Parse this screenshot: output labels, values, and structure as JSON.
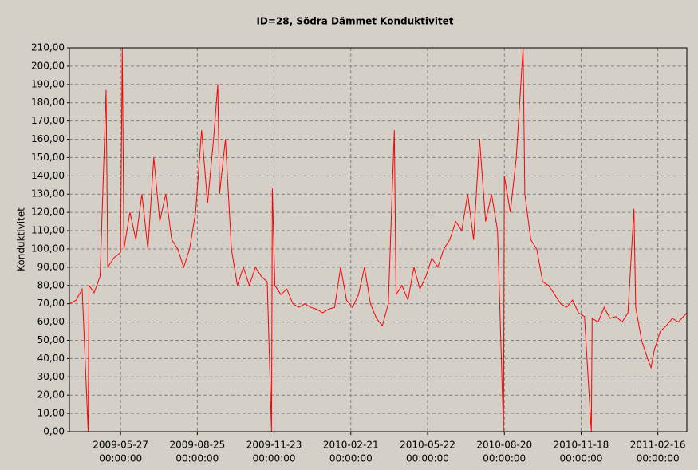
{
  "chart_data": {
    "type": "line",
    "title": "ID=28, Södra Dämmet Konduktivitet",
    "y_label": "Konduktivitet",
    "color": "#ff0000",
    "grid": true,
    "x": [
      "2009-03-28",
      "2009-04-05",
      "2009-04-12",
      "2009-04-19",
      "2009-04-20",
      "2009-04-26",
      "2009-05-03",
      "2009-05-10",
      "2009-05-12",
      "2009-05-19",
      "2009-05-27",
      "2009-05-29",
      "2009-05-31",
      "2009-06-07",
      "2009-06-14",
      "2009-06-21",
      "2009-06-28",
      "2009-07-05",
      "2009-07-12",
      "2009-07-19",
      "2009-07-26",
      "2009-08-02",
      "2009-08-09",
      "2009-08-16",
      "2009-08-23",
      "2009-08-30",
      "2009-09-06",
      "2009-09-13",
      "2009-09-18",
      "2009-09-20",
      "2009-09-27",
      "2009-10-04",
      "2009-10-11",
      "2009-10-18",
      "2009-10-25",
      "2009-11-01",
      "2009-11-08",
      "2009-11-15",
      "2009-11-20",
      "2009-11-21",
      "2009-11-24",
      "2009-12-01",
      "2009-12-08",
      "2009-12-15",
      "2009-12-22",
      "2009-12-29",
      "2010-01-05",
      "2010-01-12",
      "2010-01-19",
      "2010-01-26",
      "2010-02-02",
      "2010-02-09",
      "2010-02-16",
      "2010-02-23",
      "2010-03-02",
      "2010-03-09",
      "2010-03-16",
      "2010-03-23",
      "2010-03-30",
      "2010-04-06",
      "2010-04-13",
      "2010-04-15",
      "2010-04-22",
      "2010-04-29",
      "2010-05-06",
      "2010-05-13",
      "2010-05-20",
      "2010-05-27",
      "2010-06-03",
      "2010-06-10",
      "2010-06-17",
      "2010-06-24",
      "2010-07-01",
      "2010-07-08",
      "2010-07-15",
      "2010-07-22",
      "2010-07-29",
      "2010-08-05",
      "2010-08-12",
      "2010-08-19",
      "2010-08-20",
      "2010-08-27",
      "2010-09-03",
      "2010-09-11",
      "2010-09-13",
      "2010-09-20",
      "2010-09-27",
      "2010-10-04",
      "2010-10-11",
      "2010-10-18",
      "2010-10-25",
      "2010-11-01",
      "2010-11-08",
      "2010-11-15",
      "2010-11-22",
      "2010-11-30",
      "2010-12-01",
      "2010-12-08",
      "2010-12-15",
      "2010-12-22",
      "2010-12-29",
      "2011-01-05",
      "2011-01-12",
      "2011-01-19",
      "2011-01-21",
      "2011-01-28",
      "2011-02-04",
      "2011-02-08",
      "2011-02-12",
      "2011-02-19",
      "2011-02-26",
      "2011-03-05",
      "2011-03-12",
      "2011-03-22"
    ],
    "values": [
      70,
      72,
      78,
      0,
      80,
      76,
      85,
      187,
      90,
      95,
      98,
      210,
      100,
      120,
      105,
      130,
      100,
      150,
      115,
      130,
      105,
      100,
      90,
      100,
      120,
      165,
      125,
      160,
      190,
      130,
      160,
      100,
      80,
      90,
      80,
      90,
      85,
      82,
      0,
      133,
      80,
      75,
      78,
      70,
      68,
      70,
      68,
      67,
      65,
      67,
      68,
      90,
      72,
      68,
      75,
      90,
      70,
      62,
      58,
      70,
      165,
      75,
      80,
      72,
      90,
      78,
      85,
      95,
      90,
      100,
      105,
      115,
      110,
      130,
      105,
      160,
      115,
      130,
      110,
      0,
      140,
      120,
      150,
      210,
      130,
      105,
      100,
      82,
      80,
      75,
      70,
      68,
      72,
      65,
      63,
      0,
      62,
      60,
      68,
      62,
      63,
      60,
      65,
      122,
      68,
      50,
      40,
      35,
      45,
      55,
      58,
      62,
      60,
      65
    ],
    "xlim": [
      "2009-03-28",
      "2011-03-22"
    ],
    "xticks": [
      {
        "value": "2009-05-27",
        "label": [
          "2009-05-27",
          "00:00:00"
        ]
      },
      {
        "value": "2009-08-25",
        "label": [
          "2009-08-25",
          "00:00:00"
        ]
      },
      {
        "value": "2009-11-23",
        "label": [
          "2009-11-23",
          "00:00:00"
        ]
      },
      {
        "value": "2010-02-21",
        "label": [
          "2010-02-21",
          "00:00:00"
        ]
      },
      {
        "value": "2010-05-22",
        "label": [
          "2010-05-22",
          "00:00:00"
        ]
      },
      {
        "value": "2010-08-20",
        "label": [
          "2010-08-20",
          "00:00:00"
        ]
      },
      {
        "value": "2010-11-18",
        "label": [
          "2010-11-18",
          "00:00:00"
        ]
      },
      {
        "value": "2011-02-16",
        "label": [
          "2011-02-16",
          "00:00:00"
        ]
      }
    ],
    "ylim": [
      0,
      210
    ],
    "yticks": [
      {
        "value": 0,
        "label": "0,00"
      },
      {
        "value": 10,
        "label": "10,00"
      },
      {
        "value": 20,
        "label": "20,00"
      },
      {
        "value": 30,
        "label": "30,00"
      },
      {
        "value": 40,
        "label": "40,00"
      },
      {
        "value": 50,
        "label": "50,00"
      },
      {
        "value": 60,
        "label": "60,00"
      },
      {
        "value": 70,
        "label": "70,00"
      },
      {
        "value": 80,
        "label": "80,00"
      },
      {
        "value": 90,
        "label": "90,00"
      },
      {
        "value": 100,
        "label": "100,00"
      },
      {
        "value": 110,
        "label": "110,00"
      },
      {
        "value": 120,
        "label": "120,00"
      },
      {
        "value": 130,
        "label": "130,00"
      },
      {
        "value": 140,
        "label": "140,00"
      },
      {
        "value": 150,
        "label": "150,00"
      },
      {
        "value": 160,
        "label": "160,00"
      },
      {
        "value": 170,
        "label": "170,00"
      },
      {
        "value": 180,
        "label": "180,00"
      },
      {
        "value": 190,
        "label": "190,00"
      },
      {
        "value": 200,
        "label": "200,00"
      },
      {
        "value": 210,
        "label": "210,00"
      }
    ]
  }
}
